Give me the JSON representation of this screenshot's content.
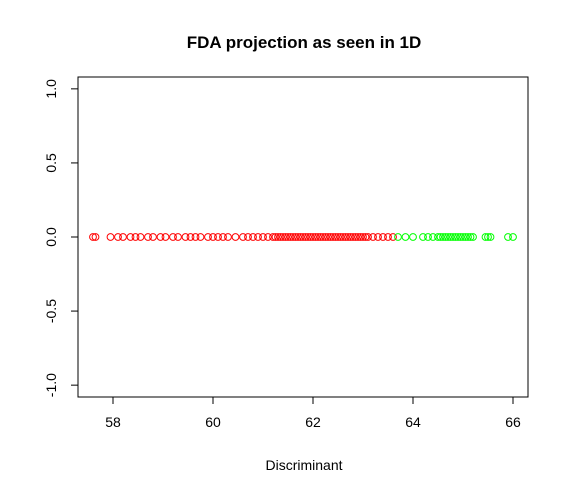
{
  "chart_data": {
    "type": "scatter",
    "title": "FDA projection as seen in 1D",
    "xlabel": "Discriminant",
    "ylabel": "",
    "xlim": [
      57.3,
      66.3
    ],
    "ylim": [
      -1.08,
      1.08
    ],
    "x_ticks": [
      58,
      60,
      62,
      64,
      66
    ],
    "x_tick_labels": [
      "58",
      "60",
      "62",
      "64",
      "66"
    ],
    "y_ticks": [
      -1.0,
      -0.5,
      0.0,
      0.5,
      1.0
    ],
    "y_tick_labels": [
      "-1.0",
      "-0.5",
      "0.0",
      "0.5",
      "1.0"
    ],
    "grid": false,
    "legend": "none",
    "marker": "open-circle",
    "series": [
      {
        "color": "#ff0000",
        "y": 0,
        "x": [
          57.6,
          57.65,
          57.95,
          58.1,
          58.2,
          58.35,
          58.45,
          58.55,
          58.7,
          58.8,
          58.95,
          59.05,
          59.2,
          59.3,
          59.45,
          59.55,
          59.65,
          59.75,
          59.9,
          60.0,
          60.1,
          60.2,
          60.3,
          60.45,
          60.6,
          60.7,
          60.8,
          60.9,
          61.0,
          61.1,
          61.2,
          61.25,
          61.3,
          61.35,
          61.4,
          61.45,
          61.5,
          61.55,
          61.6,
          61.65,
          61.7,
          61.75,
          61.8,
          61.85,
          61.9,
          61.95,
          62.0,
          62.05,
          62.1,
          62.15,
          62.2,
          62.25,
          62.3,
          62.35,
          62.4,
          62.45,
          62.5,
          62.55,
          62.6,
          62.65,
          62.7,
          62.75,
          62.8,
          62.85,
          62.9,
          62.95,
          63.0,
          63.05,
          63.1,
          63.2,
          63.3,
          63.4,
          63.5,
          63.6
        ]
      },
      {
        "color": "#00ff00",
        "y": 0,
        "x": [
          63.7,
          63.85,
          64.0,
          64.2,
          64.3,
          64.4,
          64.5,
          64.55,
          64.6,
          64.65,
          64.7,
          64.75,
          64.8,
          64.85,
          64.9,
          64.95,
          65.0,
          65.05,
          65.1,
          65.15,
          65.2,
          65.45,
          65.5,
          65.55,
          65.9,
          66.0
        ]
      }
    ]
  }
}
